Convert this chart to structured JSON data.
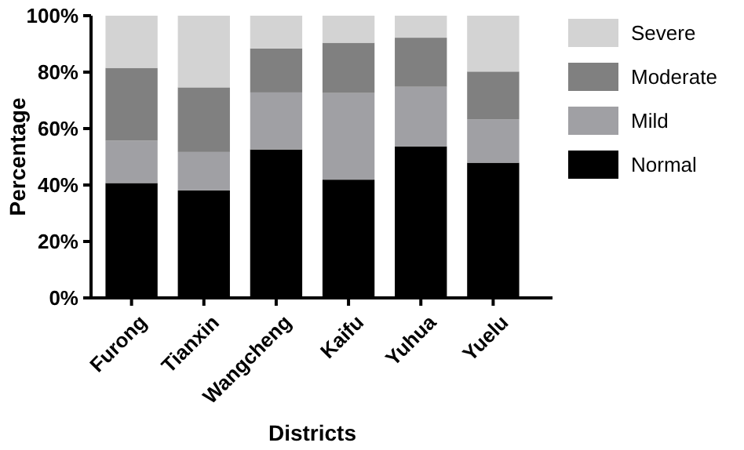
{
  "chart_data": {
    "type": "bar",
    "stacked": true,
    "xlabel": "Districts",
    "ylabel": "Percentage",
    "categories": [
      "Furong",
      "Tianxin",
      "Wangcheng",
      "Kaifu",
      "Yuhua",
      "Yuelu"
    ],
    "series": [
      {
        "name": "Normal",
        "color": "#000000",
        "values": [
          40.7,
          38.1,
          52.6,
          41.9,
          53.7,
          47.9
        ]
      },
      {
        "name": "Mild",
        "color": "#a0a0a4",
        "values": [
          15.0,
          13.6,
          20.2,
          30.7,
          21.1,
          15.4
        ]
      },
      {
        "name": "Moderate",
        "color": "#808080",
        "values": [
          25.8,
          22.9,
          15.6,
          17.8,
          17.4,
          16.9
        ]
      },
      {
        "name": "Severe",
        "color": "#d3d3d3",
        "values": [
          18.5,
          25.4,
          11.6,
          9.6,
          7.8,
          19.8
        ]
      }
    ],
    "ylim": [
      0,
      100
    ],
    "yticks": [
      {
        "value": 0,
        "label": "0%"
      },
      {
        "value": 20,
        "label": "20%"
      },
      {
        "value": 40,
        "label": "40%"
      },
      {
        "value": 60,
        "label": "60%"
      },
      {
        "value": 80,
        "label": "80%"
      },
      {
        "value": 100,
        "label": "100%"
      }
    ],
    "legend": "right",
    "grid": false
  }
}
